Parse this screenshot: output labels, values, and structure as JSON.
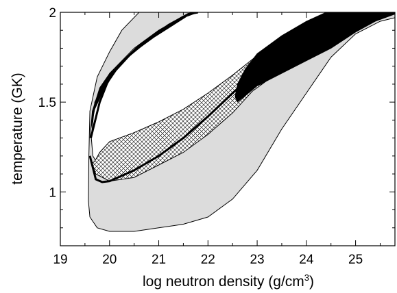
{
  "chart_data": {
    "type": "area",
    "xlabel_main": "log neutron density (g/cm",
    "xlabel_sup": "3",
    "xlabel_close": ")",
    "ylabel": "temperature (GK)",
    "xlim": [
      19.0,
      25.8
    ],
    "ylim": [
      0.7,
      2.0
    ],
    "x_ticks": [
      19,
      20,
      21,
      22,
      23,
      24,
      25
    ],
    "x_tick_labels": [
      "19",
      "20",
      "21",
      "22",
      "23",
      "24",
      "25"
    ],
    "y_ticks": [
      1.0,
      1.5,
      2.0
    ],
    "y_tick_labels": [
      "1",
      "1.5",
      "2"
    ],
    "regions": [
      {
        "fill": "gray",
        "outer": [
          [
            21.8,
            2.0
          ],
          [
            20.6,
            2.0
          ],
          [
            20.25,
            1.9
          ],
          [
            20.0,
            1.78
          ],
          [
            19.75,
            1.64
          ],
          [
            19.6,
            1.45
          ],
          [
            19.58,
            1.2
          ],
          [
            19.57,
            0.95
          ],
          [
            19.6,
            0.86
          ],
          [
            19.75,
            0.8
          ],
          [
            20.0,
            0.78
          ],
          [
            20.5,
            0.78
          ],
          [
            21.0,
            0.8
          ],
          [
            21.5,
            0.82
          ],
          [
            22.0,
            0.86
          ],
          [
            22.5,
            0.96
          ],
          [
            23.0,
            1.12
          ],
          [
            23.5,
            1.35
          ],
          [
            24.0,
            1.55
          ],
          [
            24.5,
            1.75
          ],
          [
            25.0,
            1.88
          ],
          [
            25.5,
            1.95
          ],
          [
            25.8,
            1.97
          ],
          [
            25.8,
            2.0
          ],
          [
            24.8,
            2.0
          ],
          [
            24.5,
            2.0
          ],
          [
            24.0,
            1.94
          ],
          [
            23.5,
            1.86
          ],
          [
            23.0,
            1.75
          ],
          [
            22.5,
            1.62
          ],
          [
            22.0,
            1.5
          ],
          [
            21.5,
            1.38
          ],
          [
            21.0,
            1.26
          ],
          [
            20.5,
            1.2
          ],
          [
            20.0,
            1.16
          ],
          [
            19.75,
            1.16
          ],
          [
            19.66,
            1.2
          ],
          [
            19.63,
            1.3
          ],
          [
            19.7,
            1.5
          ],
          [
            20.0,
            1.66
          ],
          [
            20.5,
            1.8
          ],
          [
            21.0,
            1.9
          ],
          [
            21.5,
            1.98
          ]
        ]
      },
      {
        "fill": "hatch",
        "outer": [
          [
            19.6,
            1.2
          ],
          [
            19.72,
            1.1
          ],
          [
            20.0,
            1.06
          ],
          [
            20.5,
            1.08
          ],
          [
            21.0,
            1.15
          ],
          [
            21.5,
            1.22
          ],
          [
            22.0,
            1.32
          ],
          [
            22.5,
            1.44
          ],
          [
            22.9,
            1.56
          ],
          [
            23.2,
            1.62
          ],
          [
            23.5,
            1.68
          ],
          [
            23.8,
            1.73
          ],
          [
            23.4,
            1.82
          ],
          [
            23.0,
            1.76
          ],
          [
            22.5,
            1.65
          ],
          [
            22.0,
            1.55
          ],
          [
            21.5,
            1.46
          ],
          [
            21.0,
            1.39
          ],
          [
            20.5,
            1.33
          ],
          [
            20.0,
            1.28
          ],
          [
            19.8,
            1.22
          ],
          [
            19.7,
            1.17
          ],
          [
            19.65,
            1.16
          ],
          [
            19.6,
            1.2
          ]
        ]
      },
      {
        "fill": "black",
        "outer": [
          [
            22.6,
            1.5
          ],
          [
            23.0,
            1.59
          ],
          [
            23.5,
            1.66
          ],
          [
            24.0,
            1.73
          ],
          [
            24.5,
            1.8
          ],
          [
            25.0,
            1.89
          ],
          [
            25.4,
            1.95
          ],
          [
            25.8,
            1.99
          ],
          [
            25.8,
            2.0
          ],
          [
            24.4,
            2.0
          ],
          [
            24.0,
            1.95
          ],
          [
            23.5,
            1.87
          ],
          [
            23.0,
            1.77
          ],
          [
            22.75,
            1.68
          ],
          [
            22.6,
            1.6
          ],
          [
            22.55,
            1.53
          ]
        ]
      },
      {
        "fill": "black",
        "outer": [
          [
            19.6,
            1.3
          ],
          [
            19.65,
            1.45
          ],
          [
            19.8,
            1.58
          ],
          [
            20.0,
            1.66
          ],
          [
            20.3,
            1.74
          ],
          [
            20.6,
            1.82
          ],
          [
            21.0,
            1.9
          ],
          [
            21.4,
            1.96
          ],
          [
            21.8,
            2.0
          ],
          [
            21.7,
            2.0
          ],
          [
            21.3,
            1.93
          ],
          [
            20.9,
            1.86
          ],
          [
            20.5,
            1.78
          ],
          [
            20.2,
            1.7
          ],
          [
            20.0,
            1.62
          ],
          [
            19.85,
            1.55
          ],
          [
            19.7,
            1.46
          ],
          [
            19.62,
            1.35
          ]
        ]
      }
    ],
    "curves": [
      {
        "stroke": "black",
        "points": [
          [
            19.6,
            1.2
          ],
          [
            19.72,
            1.07
          ],
          [
            19.85,
            1.055
          ],
          [
            20.0,
            1.06
          ],
          [
            20.5,
            1.12
          ],
          [
            21.0,
            1.2
          ],
          [
            21.5,
            1.3
          ],
          [
            22.0,
            1.42
          ],
          [
            22.5,
            1.55
          ],
          [
            23.0,
            1.67
          ],
          [
            23.5,
            1.76
          ],
          [
            24.0,
            1.84
          ],
          [
            24.5,
            1.9
          ]
        ]
      },
      {
        "stroke": "black",
        "points": [
          [
            19.62,
            1.3
          ],
          [
            19.8,
            1.5
          ],
          [
            20.0,
            1.64
          ],
          [
            20.4,
            1.76
          ],
          [
            20.8,
            1.85
          ],
          [
            21.2,
            1.93
          ],
          [
            21.6,
            1.99
          ],
          [
            21.8,
            2.0
          ]
        ]
      }
    ]
  }
}
